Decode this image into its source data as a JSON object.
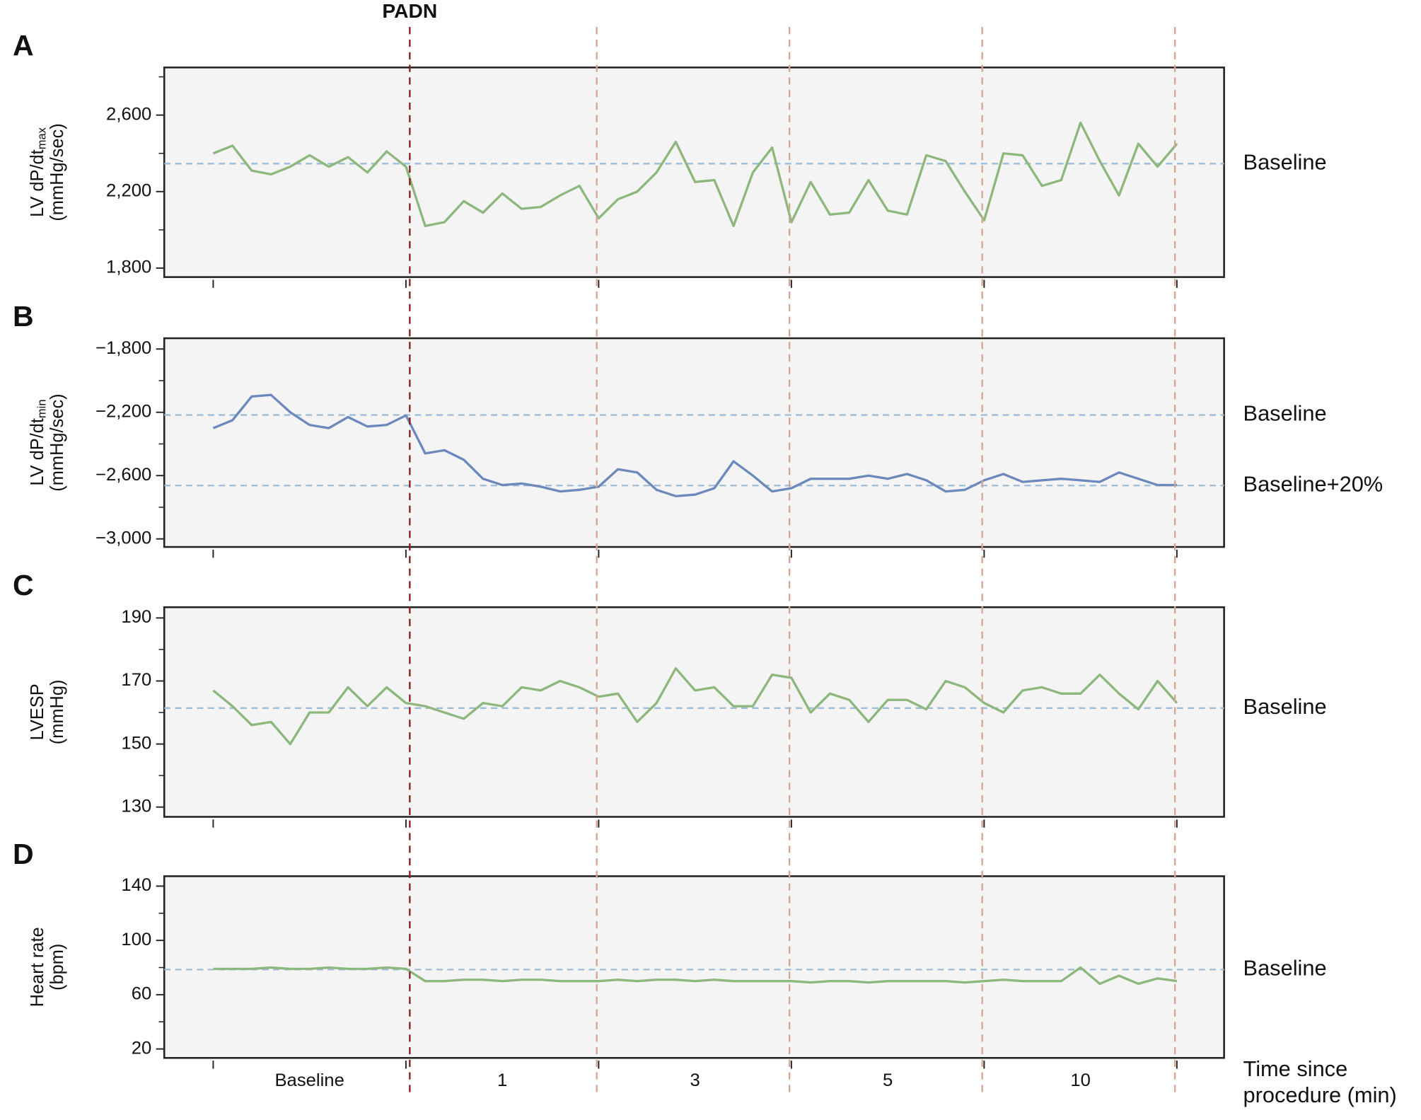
{
  "events": [
    {
      "value": 1.02,
      "label": "PADN",
      "color": "#8b1a1a"
    },
    {
      "value": 1.99,
      "color": "#d6a58f"
    },
    {
      "value": 2.99,
      "color": "#d6a58f"
    },
    {
      "value": 3.99,
      "color": "#d6a58f"
    },
    {
      "value": 4.99,
      "color": "#d6a58f"
    }
  ],
  "chart_data": [
    {
      "type": "line",
      "panel": "A",
      "ylabel": "LV dP/dt",
      "ylabel_sub": "max",
      "ylabel_unit": "(mmHg/sec)",
      "color": "#8db77c",
      "xlim": [
        -0.254,
        5.245
      ],
      "xticks": [
        0,
        1,
        2,
        3,
        4,
        5
      ],
      "ylim": [
        1753,
        2849
      ],
      "yticks": [
        {
          "value": 1800,
          "label": "1,800"
        },
        {
          "value": 2200,
          "label": "2,200"
        },
        {
          "value": 2600,
          "label": "2,600"
        }
      ],
      "yminor": [
        2000,
        2400,
        2800
      ],
      "hlines": [
        {
          "value": 2346,
          "label": "Baseline"
        }
      ],
      "x": [
        0,
        0.1,
        0.2,
        0.3,
        0.4,
        0.5,
        0.6,
        0.7,
        0.8,
        0.9,
        1,
        1.1,
        1.2,
        1.3,
        1.4,
        1.5,
        1.6,
        1.7,
        1.8,
        1.9,
        2,
        2.1,
        2.2,
        2.3,
        2.4,
        2.5,
        2.6,
        2.7,
        2.8,
        2.9,
        3,
        3.1,
        3.2,
        3.3,
        3.4,
        3.5,
        3.6,
        3.7,
        3.8,
        3.9,
        4,
        4.1,
        4.2,
        4.3,
        4.4,
        4.5,
        4.6,
        4.7,
        4.8,
        4.9,
        5
      ],
      "values": [
        2400,
        2440,
        2310,
        2290,
        2330,
        2390,
        2330,
        2380,
        2300,
        2410,
        2330,
        2020,
        2040,
        2150,
        2090,
        2190,
        2110,
        2120,
        2180,
        2230,
        2060,
        2160,
        2200,
        2300,
        2460,
        2250,
        2260,
        2020,
        2300,
        2430,
        2040,
        2250,
        2080,
        2090,
        2260,
        2100,
        2080,
        2390,
        2360,
        2200,
        2050,
        2400,
        2390,
        2230,
        2260,
        2560,
        2360,
        2180,
        2450,
        2330,
        2450
      ]
    },
    {
      "type": "line",
      "panel": "B",
      "ylabel": "LV dP/dt",
      "ylabel_sub": "min",
      "ylabel_unit": "(mmHg/sec)",
      "color": "#6d88bb",
      "xlim": [
        -0.254,
        5.245
      ],
      "xticks": [
        0,
        1,
        2,
        3,
        4,
        5
      ],
      "ylim": [
        -3051,
        -1732
      ],
      "yticks": [
        {
          "value": -1800,
          "label": "−1,800"
        },
        {
          "value": -2200,
          "label": "−2,200"
        },
        {
          "value": -2600,
          "label": "−2,600"
        },
        {
          "value": -3000,
          "label": "−3,000"
        }
      ],
      "yminor": [
        -2000,
        -2400,
        -2800
      ],
      "hlines": [
        {
          "value": -2217,
          "label": "Baseline"
        },
        {
          "value": -2663,
          "label": "Baseline+20%"
        }
      ],
      "x": [
        0,
        0.1,
        0.2,
        0.3,
        0.4,
        0.5,
        0.6,
        0.7,
        0.8,
        0.9,
        1,
        1.1,
        1.2,
        1.3,
        1.4,
        1.5,
        1.6,
        1.7,
        1.8,
        1.9,
        2,
        2.1,
        2.2,
        2.3,
        2.4,
        2.5,
        2.6,
        2.7,
        2.8,
        2.9,
        3,
        3.1,
        3.2,
        3.3,
        3.4,
        3.5,
        3.6,
        3.7,
        3.8,
        3.9,
        4,
        4.1,
        4.2,
        4.3,
        4.4,
        4.5,
        4.6,
        4.7,
        4.8,
        4.9,
        5
      ],
      "values": [
        -2300,
        -2250,
        -2100,
        -2090,
        -2200,
        -2280,
        -2300,
        -2230,
        -2290,
        -2280,
        -2220,
        -2460,
        -2440,
        -2500,
        -2620,
        -2660,
        -2650,
        -2670,
        -2700,
        -2690,
        -2670,
        -2560,
        -2580,
        -2690,
        -2730,
        -2720,
        -2680,
        -2510,
        -2600,
        -2700,
        -2680,
        -2620,
        -2620,
        -2620,
        -2600,
        -2620,
        -2590,
        -2630,
        -2700,
        -2690,
        -2630,
        -2590,
        -2640,
        -2630,
        -2620,
        -2630,
        -2640,
        -2580,
        -2620,
        -2660,
        -2660
      ]
    },
    {
      "type": "line",
      "panel": "C",
      "ylabel": "LVESP",
      "ylabel_unit": "(mmHg)",
      "color": "#8db77c",
      "xlim": [
        -0.254,
        5.245
      ],
      "xticks": [
        0,
        1,
        2,
        3,
        4,
        5
      ],
      "ylim": [
        126.9,
        193.4
      ],
      "yticks": [
        130,
        150,
        170,
        190
      ],
      "yminor": [
        140,
        160,
        180
      ],
      "hlines": [
        {
          "value": 161.4,
          "label": "Baseline"
        }
      ],
      "x": [
        0,
        0.1,
        0.2,
        0.3,
        0.4,
        0.5,
        0.6,
        0.7,
        0.8,
        0.9,
        1,
        1.1,
        1.2,
        1.3,
        1.4,
        1.5,
        1.6,
        1.7,
        1.8,
        1.9,
        2,
        2.1,
        2.2,
        2.3,
        2.4,
        2.5,
        2.6,
        2.7,
        2.8,
        2.9,
        3,
        3.1,
        3.2,
        3.3,
        3.4,
        3.5,
        3.6,
        3.7,
        3.8,
        3.9,
        4,
        4.1,
        4.2,
        4.3,
        4.4,
        4.5,
        4.6,
        4.7,
        4.8,
        4.9,
        5
      ],
      "values": [
        167,
        162,
        156,
        157,
        150,
        160,
        160,
        168,
        162,
        168,
        163,
        162,
        160,
        158,
        163,
        162,
        168,
        167,
        170,
        168,
        165,
        166,
        157,
        163,
        174,
        167,
        168,
        162,
        162,
        172,
        171,
        160,
        166,
        164,
        157,
        164,
        164,
        161,
        170,
        168,
        163,
        160,
        167,
        168,
        166,
        166,
        172,
        166,
        161,
        170,
        163
      ]
    },
    {
      "type": "line",
      "panel": "D",
      "ylabel": "Heart rate",
      "ylabel_unit": "(bpm)",
      "color": "#8db77c",
      "xlim": [
        -0.254,
        5.245
      ],
      "xticks": [
        0,
        1,
        2,
        3,
        4,
        5
      ],
      "ylim": [
        13.4,
        147.3
      ],
      "yticks": [
        20,
        60,
        100,
        140
      ],
      "yminor": [
        40,
        80,
        120
      ],
      "hlines": [
        {
          "value": 78.5,
          "label": "Baseline"
        }
      ],
      "categories": [
        "Baseline",
        "1",
        "3",
        "5",
        "10"
      ],
      "xlabel": [
        "Time since",
        "procedure (min)"
      ],
      "x": [
        0,
        0.1,
        0.2,
        0.3,
        0.4,
        0.5,
        0.6,
        0.7,
        0.8,
        0.9,
        1,
        1.1,
        1.2,
        1.3,
        1.4,
        1.5,
        1.6,
        1.7,
        1.8,
        1.9,
        2,
        2.1,
        2.2,
        2.3,
        2.4,
        2.5,
        2.6,
        2.7,
        2.8,
        2.9,
        3,
        3.1,
        3.2,
        3.3,
        3.4,
        3.5,
        3.6,
        3.7,
        3.8,
        3.9,
        4,
        4.1,
        4.2,
        4.3,
        4.4,
        4.5,
        4.6,
        4.7,
        4.8,
        4.9,
        5
      ],
      "values": [
        79,
        79,
        79,
        80,
        79,
        79,
        80,
        79,
        79,
        80,
        79,
        70,
        70,
        71,
        71,
        70,
        71,
        71,
        70,
        70,
        70,
        71,
        70,
        71,
        71,
        70,
        71,
        70,
        70,
        70,
        70,
        69,
        70,
        70,
        69,
        70,
        70,
        70,
        70,
        69,
        70,
        71,
        70,
        70,
        70,
        80,
        68,
        74,
        68,
        72,
        70
      ]
    }
  ]
}
